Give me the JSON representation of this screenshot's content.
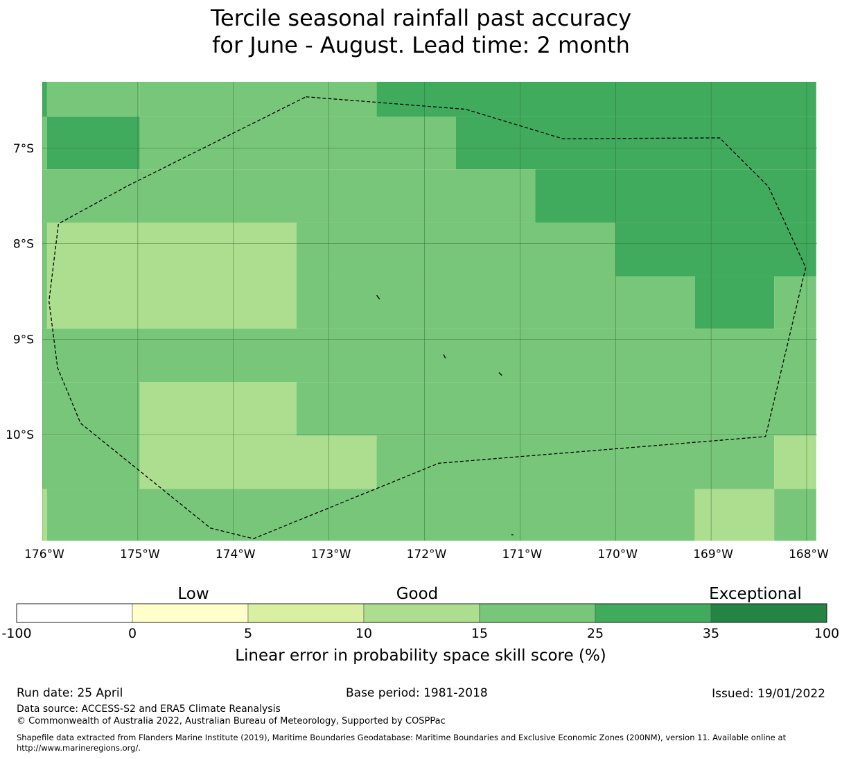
{
  "title": {
    "line1": "Tercile seasonal rainfall past accuracy",
    "line2": "for June - August. Lead time: 2 month"
  },
  "map": {
    "lon_range": [
      -176,
      -167.9
    ],
    "lat_range": [
      -11.15,
      -6.3
    ],
    "lat_ticks": [
      {
        "value": -7,
        "label": "7°S"
      },
      {
        "value": -8,
        "label": "8°S"
      },
      {
        "value": -9,
        "label": "9°S"
      },
      {
        "value": -10,
        "label": "10°S"
      }
    ],
    "lon_ticks": [
      {
        "value": -176,
        "label": "176°W"
      },
      {
        "value": -175,
        "label": "175°W"
      },
      {
        "value": -174,
        "label": "174°W"
      },
      {
        "value": -173,
        "label": "173°W"
      },
      {
        "value": -172,
        "label": "172°W"
      },
      {
        "value": -171,
        "label": "171°W"
      },
      {
        "value": -170,
        "label": "170°W"
      },
      {
        "value": -169,
        "label": "169°W"
      },
      {
        "value": -168,
        "label": "168°W"
      }
    ],
    "grid": "on",
    "category_colors": [
      "#ffffff",
      "#ffffcc",
      "#d9f0a3",
      "#addd8e",
      "#78c679",
      "#41ab5d",
      "#238443"
    ],
    "cells": [
      {
        "lon0": -176.1,
        "lon1": -175.95,
        "lat0": -6.3,
        "lat1": -6.67,
        "cat": 5
      },
      {
        "lon0": -175.95,
        "lon1": -174.98,
        "lat0": -6.3,
        "lat1": -6.67,
        "cat": 4
      },
      {
        "lon0": -174.98,
        "lon1": -172.5,
        "lat0": -6.3,
        "lat1": -6.67,
        "cat": 4
      },
      {
        "lon0": -172.5,
        "lon1": -167.9,
        "lat0": -6.3,
        "lat1": -6.67,
        "cat": 5
      },
      {
        "lon0": -176.1,
        "lon1": -175.95,
        "lat0": -6.67,
        "lat1": -7.22,
        "cat": 4
      },
      {
        "lon0": -175.95,
        "lon1": -174.98,
        "lat0": -6.67,
        "lat1": -7.22,
        "cat": 5
      },
      {
        "lon0": -174.98,
        "lon1": -171.67,
        "lat0": -6.67,
        "lat1": -7.22,
        "cat": 4
      },
      {
        "lon0": -171.67,
        "lon1": -167.9,
        "lat0": -6.67,
        "lat1": -7.22,
        "cat": 5
      },
      {
        "lon0": -176.1,
        "lon1": -170.84,
        "lat0": -7.22,
        "lat1": -7.78,
        "cat": 4
      },
      {
        "lon0": -170.84,
        "lon1": -167.9,
        "lat0": -7.22,
        "lat1": -7.78,
        "cat": 5
      },
      {
        "lon0": -176.1,
        "lon1": -175.95,
        "lat0": -7.78,
        "lat1": -8.34,
        "cat": 4
      },
      {
        "lon0": -175.95,
        "lon1": -173.34,
        "lat0": -7.78,
        "lat1": -8.34,
        "cat": 3
      },
      {
        "lon0": -173.34,
        "lon1": -170.0,
        "lat0": -7.78,
        "lat1": -8.34,
        "cat": 4
      },
      {
        "lon0": -170.0,
        "lon1": -167.9,
        "lat0": -7.78,
        "lat1": -8.34,
        "cat": 5
      },
      {
        "lon0": -176.1,
        "lon1": -175.95,
        "lat0": -8.34,
        "lat1": -8.89,
        "cat": 4
      },
      {
        "lon0": -175.95,
        "lon1": -173.34,
        "lat0": -8.34,
        "lat1": -8.89,
        "cat": 3
      },
      {
        "lon0": -173.34,
        "lon1": -169.17,
        "lat0": -8.34,
        "lat1": -8.89,
        "cat": 4
      },
      {
        "lon0": -169.17,
        "lon1": -168.34,
        "lat0": -8.34,
        "lat1": -8.89,
        "cat": 5
      },
      {
        "lon0": -168.34,
        "lon1": -167.9,
        "lat0": -8.34,
        "lat1": -8.89,
        "cat": 4
      },
      {
        "lon0": -176.1,
        "lon1": -167.9,
        "lat0": -8.89,
        "lat1": -9.45,
        "cat": 4
      },
      {
        "lon0": -176.1,
        "lon1": -174.98,
        "lat0": -9.45,
        "lat1": -10.01,
        "cat": 4
      },
      {
        "lon0": -174.98,
        "lon1": -173.34,
        "lat0": -9.45,
        "lat1": -10.01,
        "cat": 3
      },
      {
        "lon0": -173.34,
        "lon1": -167.9,
        "lat0": -9.45,
        "lat1": -10.01,
        "cat": 4
      },
      {
        "lon0": -176.1,
        "lon1": -174.98,
        "lat0": -10.01,
        "lat1": -10.57,
        "cat": 4
      },
      {
        "lon0": -174.98,
        "lon1": -172.5,
        "lat0": -10.01,
        "lat1": -10.57,
        "cat": 3
      },
      {
        "lon0": -172.5,
        "lon1": -168.34,
        "lat0": -10.01,
        "lat1": -10.57,
        "cat": 4
      },
      {
        "lon0": -168.34,
        "lon1": -167.9,
        "lat0": -10.01,
        "lat1": -10.57,
        "cat": 3
      },
      {
        "lon0": -176.1,
        "lon1": -175.95,
        "lat0": -10.57,
        "lat1": -11.15,
        "cat": 3
      },
      {
        "lon0": -175.95,
        "lon1": -169.17,
        "lat0": -10.57,
        "lat1": -11.15,
        "cat": 4
      },
      {
        "lon0": -169.17,
        "lon1": -168.34,
        "lat0": -10.57,
        "lat1": -11.15,
        "cat": 3
      },
      {
        "lon0": -168.34,
        "lon1": -167.9,
        "lat0": -10.57,
        "lat1": -11.15,
        "cat": 4
      }
    ],
    "eez_boundary": [
      [
        -173.24,
        -6.46
      ],
      [
        -171.57,
        -6.59
      ],
      [
        -170.55,
        -6.9
      ],
      [
        -168.91,
        -6.89
      ],
      [
        -168.4,
        -7.4
      ],
      [
        -168.01,
        -8.25
      ],
      [
        -168.43,
        -10.02
      ],
      [
        -171.85,
        -10.3
      ],
      [
        -173.79,
        -11.09
      ],
      [
        -174.24,
        -10.98
      ],
      [
        -175.6,
        -9.88
      ],
      [
        -175.84,
        -9.3
      ],
      [
        -175.93,
        -8.6
      ],
      [
        -175.83,
        -7.79
      ],
      [
        -175.12,
        -7.4
      ],
      [
        -173.24,
        -6.46
      ]
    ],
    "islands": [
      [
        [
          -172.5,
          -8.54
        ],
        [
          -172.47,
          -8.58
        ]
      ],
      [
        [
          -171.8,
          -9.16
        ],
        [
          -171.78,
          -9.2
        ]
      ],
      [
        [
          -171.22,
          -9.35
        ],
        [
          -171.19,
          -9.38
        ]
      ],
      [
        [
          -171.09,
          -11.05
        ],
        [
          -171.07,
          -11.05
        ]
      ]
    ]
  },
  "colorbar": {
    "category_words": [
      "Low",
      "Good",
      "Exceptional"
    ],
    "boundaries": [
      "-100",
      "0",
      "5",
      "10",
      "15",
      "25",
      "35",
      "100"
    ],
    "colors": [
      "#ffffff",
      "#ffffcc",
      "#d9f0a3",
      "#addd8e",
      "#78c679",
      "#41ab5d",
      "#238443"
    ],
    "label": "Linear error in probability space skill score (%)"
  },
  "footer": {
    "run_date": "Run date: 25 April",
    "base_period": "Base period: 1981-2018",
    "issued": "Issued: 19/01/2022",
    "data_source": "Data source: ACCESS-S2 and ERA5 Climate Reanalysis",
    "copyright": "© Commonwealth of Australia 2022, Australian Bureau of Meteorology, Supported by COSPPac",
    "shapefile": "Shapefile data extracted from Flanders Marine Institute (2019), Maritime Boundaries Geodatabase: Maritime Boundaries and Exclusive Economic Zones (200NM), version 11. Available online at http://www.marineregions.org/."
  }
}
